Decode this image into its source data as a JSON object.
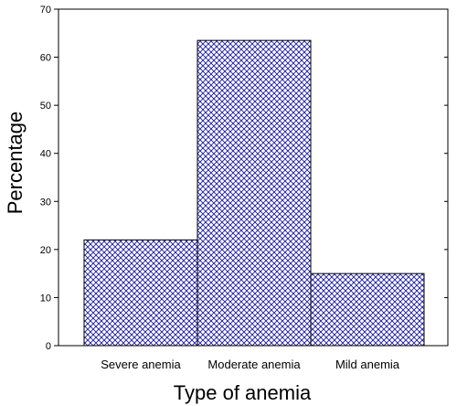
{
  "chart_data": {
    "type": "bar",
    "title": "",
    "xlabel": "Type of anemia",
    "ylabel": "Percentage",
    "categories": [
      "Severe anemia",
      "Moderate anemia",
      "Mild anemia"
    ],
    "values": [
      22,
      63.5,
      15
    ],
    "ylim": [
      0,
      70
    ],
    "yticks": [
      0,
      10,
      20,
      30,
      40,
      50,
      60,
      70
    ],
    "grid": false,
    "legend": "none",
    "bar_pattern": "crosshatch",
    "colors": {
      "hatch": "#1a1aa8",
      "bar_edge": "#000000",
      "background": "#ffffff"
    }
  }
}
